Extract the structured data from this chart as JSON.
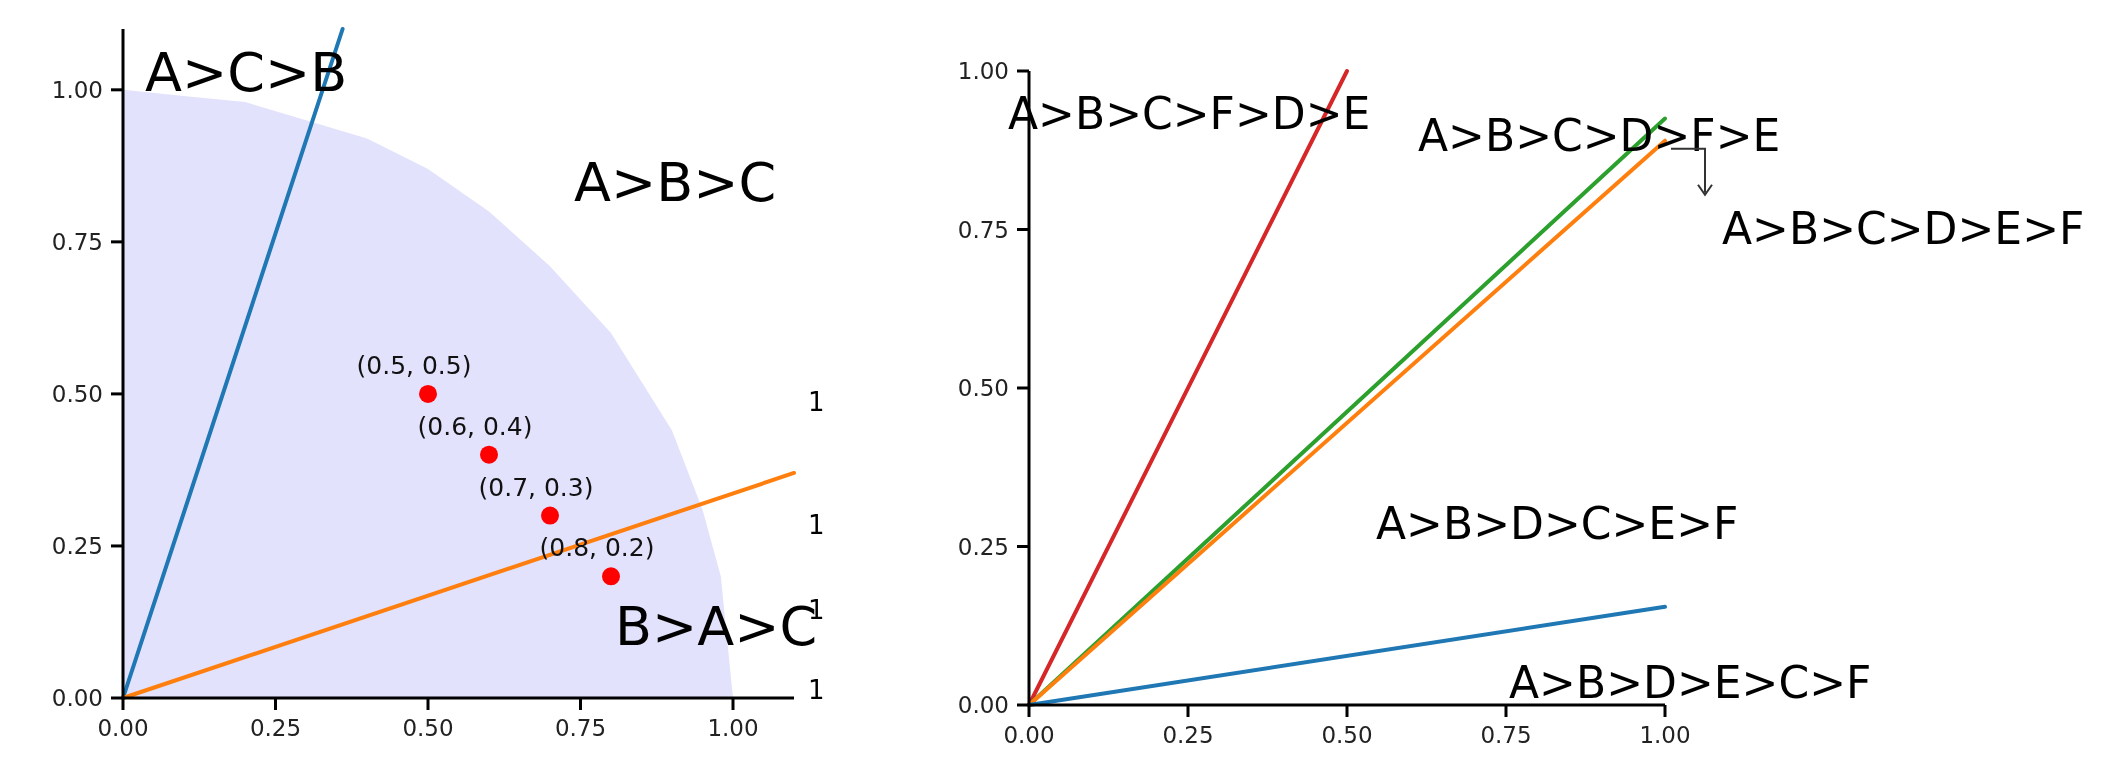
{
  "chart_data": [
    {
      "type": "line",
      "xlim": [
        0,
        1.1
      ],
      "ylim": [
        0,
        1.1
      ],
      "xticks": [
        {
          "value": 0,
          "label": "0.00"
        },
        {
          "value": 0.25,
          "label": "0.25"
        },
        {
          "value": 0.5,
          "label": "0.50"
        },
        {
          "value": 0.75,
          "label": "0.75"
        },
        {
          "value": 1,
          "label": "1.00"
        }
      ],
      "yticks": [
        {
          "value": 0,
          "label": "0.00"
        },
        {
          "value": 0.25,
          "label": "0.25"
        },
        {
          "value": 0.5,
          "label": "0.50"
        },
        {
          "value": 0.75,
          "label": "0.75"
        },
        {
          "value": 1,
          "label": "1.00"
        }
      ],
      "grid": false,
      "series": [
        {
          "type": "area",
          "color": "#e2e2fc",
          "x": [
            0,
            0.1,
            0.2,
            0.3,
            0.4,
            0.5,
            0.6,
            0.7,
            0.8,
            0.9,
            0.95,
            0.98,
            1
          ],
          "values": [
            1,
            0.99,
            0.98,
            0.95,
            0.92,
            0.87,
            0.8,
            0.71,
            0.6,
            0.44,
            0.31,
            0.2,
            0
          ]
        },
        {
          "color": "#1f77b4",
          "x": [
            0,
            0.36
          ],
          "values": [
            0,
            1.1
          ]
        },
        {
          "color": "#ff7f0e",
          "x": [
            0,
            1.1
          ],
          "values": [
            0,
            0.37
          ]
        },
        {
          "type": "scatter",
          "color": "#ff0000",
          "marker": "circle",
          "x": [
            0.5,
            0.6,
            0.7,
            0.8
          ],
          "values": [
            0.5,
            0.4,
            0.3,
            0.2
          ],
          "value_labels": [
            "(0.5, 0.5)",
            "(0.6, 0.4)",
            "(0.7, 0.3)",
            "(0.8, 0.2)"
          ]
        }
      ],
      "annotations": [
        "A>C>B",
        "A>B>C",
        "B>A>C",
        "1",
        "1",
        "1",
        "1"
      ]
    },
    {
      "type": "line",
      "xlim": [
        0,
        1
      ],
      "ylim": [
        0,
        1
      ],
      "xticks": [
        {
          "value": 0,
          "label": "0.00"
        },
        {
          "value": 0.25,
          "label": "0.25"
        },
        {
          "value": 0.5,
          "label": "0.50"
        },
        {
          "value": 0.75,
          "label": "0.75"
        },
        {
          "value": 1,
          "label": "1.00"
        }
      ],
      "yticks": [
        {
          "value": 0,
          "label": "0.00"
        },
        {
          "value": 0.25,
          "label": "0.25"
        },
        {
          "value": 0.5,
          "label": "0.50"
        },
        {
          "value": 0.75,
          "label": "0.75"
        },
        {
          "value": 1,
          "label": "1.00"
        }
      ],
      "grid": false,
      "series": [
        {
          "color": "#d62728",
          "x": [
            0,
            0.5
          ],
          "values": [
            0,
            1
          ]
        },
        {
          "color": "#2ca02c",
          "x": [
            0,
            1
          ],
          "values": [
            0,
            0.925
          ]
        },
        {
          "color": "#ff7f0e",
          "x": [
            0,
            1
          ],
          "values": [
            0,
            0.89
          ]
        },
        {
          "color": "#1f77b4",
          "x": [
            0,
            1
          ],
          "values": [
            0,
            0.155
          ]
        }
      ],
      "annotations": [
        "A>B>C>F>D>E",
        "A>B>C>D>F>E",
        "A>B>C>D>E>F",
        "A>B>D>C>E>F",
        "A>B>D>E>C>F"
      ]
    }
  ]
}
